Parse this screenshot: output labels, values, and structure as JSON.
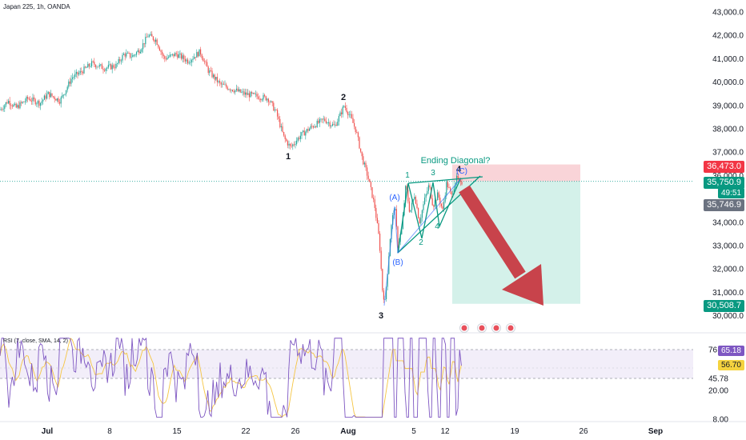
{
  "header": {
    "symbol_title": "Japan 225, 1h, OANDA",
    "rsi_title": "RSI (7, close, SMA, 14, 2)"
  },
  "price_axis": {
    "labels": [
      "43,000.0",
      "42,000.0",
      "41,000.0",
      "40,000.0",
      "39,000.0",
      "38,000.0",
      "37,000.0",
      "36,000.0",
      "34,000.0",
      "33,000.0",
      "32,000.0",
      "31,000.0",
      "30,000.0"
    ]
  },
  "rsi_axis": {
    "labels": [
      "76.03",
      "45.78",
      "20.00",
      "8.00"
    ]
  },
  "time_axis": {
    "labels": [
      "Jul",
      "8",
      "15",
      "22",
      "26",
      "Aug",
      "5",
      "12",
      "19",
      "26",
      "Sep"
    ]
  },
  "tags": {
    "stop_loss": "36,473.0",
    "last_price": "35,750.9",
    "countdown": "49:51",
    "prev_price": "35,746.9",
    "take_profit": "30,508.7",
    "rsi_value": "65.18",
    "rsi_sma": "56.70"
  },
  "annotations": {
    "wave_1": "1",
    "wave_2": "2",
    "wave_3": "3",
    "wave_4": "4",
    "wave_a": "(A)",
    "wave_b": "(B)",
    "wave_c": "(C)",
    "sub_1": "1",
    "sub_2": "2",
    "sub_3": "3",
    "sub_4": "4",
    "pattern_label": "Ending Diagonal?"
  },
  "colors": {
    "up": "#26a69a",
    "down": "#ef5350",
    "text": "#131722",
    "wave_label": "#2962ff",
    "diagonal": "#089981",
    "stop_fill": "#f7c5cb",
    "target_fill": "#cdeee6",
    "arrow": "#c8434b",
    "rsi_line": "#7e57c2",
    "rsi_sma": "#f5c542",
    "rsi_band": "#ede7f6"
  },
  "icons": [
    "event-flag-icon",
    "event-flag-icon",
    "event-flag-icon",
    "event-flag-icon"
  ],
  "chart_data": {
    "type": "candlestick",
    "title": "Japan 225, 1h, OANDA",
    "x_ticks": [
      "Jul",
      "8",
      "15",
      "22",
      "26",
      "Aug",
      "5",
      "12",
      "19",
      "26",
      "Sep"
    ],
    "y_range": [
      29700,
      43300
    ],
    "price_path": [
      [
        0,
        38800
      ],
      [
        10,
        39200
      ],
      [
        20,
        38900
      ],
      [
        35,
        39300
      ],
      [
        50,
        39100
      ],
      [
        60,
        39500
      ],
      [
        75,
        39200
      ],
      [
        90,
        40200
      ],
      [
        100,
        40400
      ],
      [
        115,
        40800
      ],
      [
        130,
        40600
      ],
      [
        145,
        40700
      ],
      [
        155,
        41200
      ],
      [
        165,
        41100
      ],
      [
        175,
        41400
      ],
      [
        185,
        42000
      ],
      [
        195,
        41800
      ],
      [
        205,
        41000
      ],
      [
        220,
        41200
      ],
      [
        235,
        40900
      ],
      [
        250,
        41300
      ],
      [
        260,
        40500
      ],
      [
        275,
        39900
      ],
      [
        290,
        39700
      ],
      [
        305,
        39500
      ],
      [
        320,
        39400
      ],
      [
        335,
        39300
      ],
      [
        345,
        38700
      ],
      [
        355,
        37600
      ],
      [
        363,
        37200
      ],
      [
        375,
        37700
      ],
      [
        390,
        38100
      ],
      [
        405,
        38400
      ],
      [
        418,
        38100
      ],
      [
        425,
        38600
      ],
      [
        430,
        39000
      ],
      [
        438,
        38500
      ],
      [
        445,
        37900
      ],
      [
        452,
        36800
      ],
      [
        460,
        35900
      ],
      [
        468,
        34700
      ],
      [
        474,
        33200
      ],
      [
        478,
        31000
      ],
      [
        481,
        30600
      ],
      [
        484,
        31800
      ],
      [
        488,
        33600
      ],
      [
        493,
        34800
      ],
      [
        497,
        33000
      ],
      [
        502,
        33700
      ],
      [
        507,
        35600
      ],
      [
        512,
        34400
      ],
      [
        518,
        35200
      ],
      [
        524,
        34000
      ],
      [
        530,
        34900
      ],
      [
        536,
        35600
      ],
      [
        541,
        34700
      ],
      [
        547,
        35200
      ],
      [
        553,
        34500
      ],
      [
        558,
        35700
      ],
      [
        564,
        35100
      ],
      [
        570,
        35900
      ],
      [
        575,
        35600
      ],
      [
        578,
        35750
      ]
    ],
    "rsi": {
      "levels": [
        76.03,
        56.7,
        45.78
      ],
      "last_value": 65.18,
      "sma_last": 56.7
    },
    "position": {
      "type": "short",
      "entry": 35750.9,
      "stop": 36473.0,
      "target": 30508.7
    }
  }
}
